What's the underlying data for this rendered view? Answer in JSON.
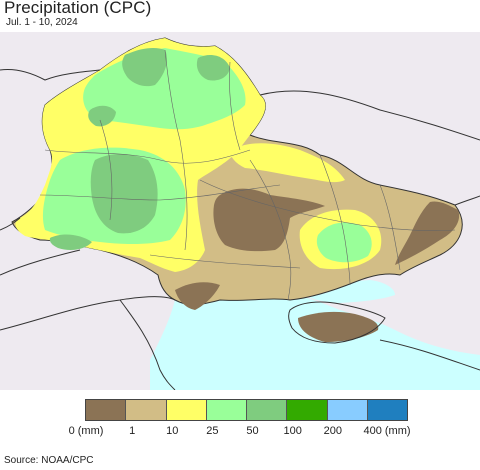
{
  "title": "Precipitation (CPC)",
  "subtitle": "Jul. 1 - 10, 2024",
  "source": "Source: NOAA/CPC",
  "legend": {
    "colors": [
      "#8b7355",
      "#d2bd86",
      "#ffff66",
      "#99ff99",
      "#7fcc7f",
      "#33aa00",
      "#88ccff",
      "#1f7fbf"
    ],
    "labels": [
      "0 (mm)",
      "1",
      "10",
      "25",
      "50",
      "100",
      "200",
      "400 (mm)"
    ]
  },
  "map": {
    "background_color": "#eeeaf0",
    "sea_color": "#ccffff"
  }
}
